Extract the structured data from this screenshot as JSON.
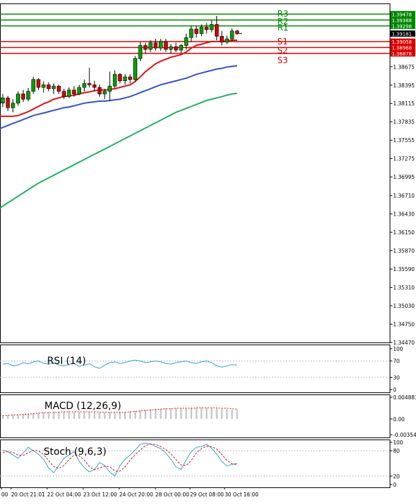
{
  "colors": {
    "background": "#ffffff",
    "frame": "#000000",
    "bull_candle": "#00a000",
    "bear_candle": "#d40000",
    "ma_fast": "#e01010",
    "ma_mid": "#3050d0",
    "ma_slow": "#20b060",
    "resistance": "#008800",
    "support": "#dd0000",
    "current_price_bg": "#000000",
    "oscillator": "#30a0e0",
    "signal": "#e01010",
    "rsi_line": "#2f9fe0"
  },
  "chart_data": [
    {
      "type": "candlestick",
      "panel": "main",
      "ylim": [
        1.3447,
        1.3964
      ],
      "price_ticks": [
        "1.38675",
        "1.38395",
        "1.38115",
        "1.37835",
        "1.37555",
        "1.37275",
        "1.36995",
        "1.36710",
        "1.36430",
        "1.36150",
        "1.35870",
        "1.35590",
        "1.35310",
        "1.35030",
        "1.34750",
        "1.34470"
      ],
      "time_labels": [
        "00",
        "20 Oct 21:01",
        "22 Oct 04:00",
        "23 Oct 12:00",
        "24 Oct 20:00",
        "28 Oct 00:00",
        "29 Oct 08:00",
        "30 Oct 16:00"
      ],
      "current_price": "1.39181",
      "levels": [
        {
          "name": "R3",
          "value": 1.39478,
          "label": "1.39478",
          "kind": "resistance"
        },
        {
          "name": "R2",
          "value": 1.39388,
          "label": "1.39388",
          "kind": "resistance"
        },
        {
          "name": "R1",
          "value": 1.39298,
          "label": "1.39298",
          "kind": "resistance"
        },
        {
          "name": "S1",
          "value": 1.39058,
          "label": "1.39058",
          "kind": "support"
        },
        {
          "name": "S2",
          "value": 1.38968,
          "label": "1.38968",
          "kind": "support"
        },
        {
          "name": "S3",
          "value": 1.38878,
          "label": "1.38878",
          "kind": "support"
        }
      ],
      "candles": [
        [
          1.3812,
          1.3826,
          1.3806,
          1.382
        ],
        [
          1.382,
          1.3823,
          1.38,
          1.3805
        ],
        [
          1.3805,
          1.3818,
          1.3798,
          1.3812
        ],
        [
          1.3812,
          1.383,
          1.3808,
          1.3826
        ],
        [
          1.3826,
          1.3832,
          1.3814,
          1.3818
        ],
        [
          1.3818,
          1.3835,
          1.3815,
          1.383
        ],
        [
          1.383,
          1.3852,
          1.3826,
          1.3848
        ],
        [
          1.3848,
          1.385,
          1.3832,
          1.3836
        ],
        [
          1.3836,
          1.3845,
          1.3828,
          1.384
        ],
        [
          1.384,
          1.3844,
          1.383,
          1.3834
        ],
        [
          1.3834,
          1.3842,
          1.3826,
          1.3838
        ],
        [
          1.3838,
          1.384,
          1.3826,
          1.383
        ],
        [
          1.383,
          1.3834,
          1.3818,
          1.3822
        ],
        [
          1.3822,
          1.3836,
          1.382,
          1.3832
        ],
        [
          1.3832,
          1.3838,
          1.3822,
          1.3826
        ],
        [
          1.3826,
          1.384,
          1.3824,
          1.3836
        ],
        [
          1.3836,
          1.3848,
          1.383,
          1.3842
        ],
        [
          1.3842,
          1.3866,
          1.3836,
          1.384
        ],
        [
          1.384,
          1.3846,
          1.383,
          1.3836
        ],
        [
          1.3836,
          1.384,
          1.3822,
          1.3826
        ],
        [
          1.3826,
          1.3834,
          1.3818,
          1.383
        ],
        [
          1.383,
          1.386,
          1.3815,
          1.3838
        ],
        [
          1.3838,
          1.3862,
          1.3835,
          1.3856
        ],
        [
          1.3856,
          1.3858,
          1.3842,
          1.3846
        ],
        [
          1.3846,
          1.3856,
          1.384,
          1.3852
        ],
        [
          1.3852,
          1.3856,
          1.3842,
          1.3848
        ],
        [
          1.3848,
          1.3884,
          1.3845,
          1.388
        ],
        [
          1.388,
          1.3905,
          1.3876,
          1.39
        ],
        [
          1.39,
          1.3904,
          1.3888,
          1.3894
        ],
        [
          1.3894,
          1.3908,
          1.389,
          1.3904
        ],
        [
          1.3904,
          1.391,
          1.3892,
          1.3896
        ],
        [
          1.3896,
          1.391,
          1.3892,
          1.3906
        ],
        [
          1.3906,
          1.391,
          1.389,
          1.3894
        ],
        [
          1.3894,
          1.3902,
          1.3888,
          1.3898
        ],
        [
          1.3898,
          1.3904,
          1.389,
          1.3893
        ],
        [
          1.3893,
          1.3902,
          1.3888,
          1.39
        ],
        [
          1.39,
          1.3918,
          1.3894,
          1.3912
        ],
        [
          1.3912,
          1.393,
          1.3905,
          1.3925
        ],
        [
          1.3925,
          1.393,
          1.3912,
          1.3918
        ],
        [
          1.3918,
          1.3932,
          1.3914,
          1.3928
        ],
        [
          1.3928,
          1.3934,
          1.3918,
          1.3924
        ],
        [
          1.3924,
          1.3938,
          1.392,
          1.3932
        ],
        [
          1.3932,
          1.3945,
          1.3908,
          1.3914
        ],
        [
          1.3914,
          1.3922,
          1.39,
          1.3905
        ],
        [
          1.3905,
          1.3915,
          1.3902,
          1.391
        ],
        [
          1.391,
          1.3926,
          1.3906,
          1.3922
        ],
        [
          1.3922,
          1.3924,
          1.3916,
          1.3918
        ]
      ],
      "ma_fast": [
        1.3792,
        1.3792,
        1.3792,
        1.3793,
        1.3796,
        1.3799,
        1.3803,
        1.3807,
        1.3811,
        1.3814,
        1.3818,
        1.382,
        1.3822,
        1.3823,
        1.3824,
        1.3826,
        1.3828,
        1.3829,
        1.3831,
        1.3832,
        1.3832,
        1.3833,
        1.3834,
        1.3836,
        1.3838,
        1.384,
        1.3845,
        1.3852,
        1.386,
        1.3866,
        1.3872,
        1.3876,
        1.3879,
        1.3882,
        1.3884,
        1.3886,
        1.389,
        1.3896,
        1.39,
        1.3902,
        1.3904,
        1.3906,
        1.3906,
        1.3906,
        1.3907,
        1.3908,
        1.3908
      ],
      "ma_mid": [
        1.3775,
        1.3778,
        1.3781,
        1.3784,
        1.3787,
        1.379,
        1.3793,
        1.3795,
        1.3797,
        1.3799,
        1.3801,
        1.3803,
        1.3805,
        1.3806,
        1.3808,
        1.381,
        1.3812,
        1.3813,
        1.3814,
        1.3815,
        1.3815,
        1.3816,
        1.3817,
        1.3818,
        1.382,
        1.3822,
        1.3825,
        1.3828,
        1.3831,
        1.3834,
        1.3837,
        1.384,
        1.3842,
        1.3844,
        1.3846,
        1.3848,
        1.385,
        1.3853,
        1.3856,
        1.3858,
        1.386,
        1.3862,
        1.3864,
        1.3865,
        1.3867,
        1.3868,
        1.3869
      ],
      "ma_slow": [
        1.3655,
        1.366,
        1.3665,
        1.367,
        1.3675,
        1.368,
        1.3685,
        1.369,
        1.3694,
        1.3698,
        1.3702,
        1.3706,
        1.371,
        1.3714,
        1.3718,
        1.3722,
        1.3726,
        1.373,
        1.3734,
        1.3738,
        1.3742,
        1.3746,
        1.375,
        1.3754,
        1.3758,
        1.3762,
        1.3766,
        1.377,
        1.3774,
        1.3778,
        1.3782,
        1.3786,
        1.379,
        1.3794,
        1.3798,
        1.3801,
        1.3804,
        1.3807,
        1.381,
        1.3813,
        1.3816,
        1.3818,
        1.382,
        1.3822,
        1.3824,
        1.3826,
        1.3827
      ]
    },
    {
      "type": "line",
      "panel": "rsi",
      "title": "RSI (14)",
      "ylim": [
        0,
        100
      ],
      "ticks": [
        "100",
        "70",
        "30",
        "0"
      ],
      "tick_values": [
        100,
        70,
        30,
        0
      ],
      "values": [
        62,
        64,
        58,
        60,
        66,
        63,
        68,
        70,
        64,
        62,
        66,
        60,
        58,
        62,
        64,
        57,
        60,
        63,
        56,
        52,
        60,
        66,
        68,
        64,
        66,
        70,
        72,
        70,
        66,
        68,
        70,
        68,
        64,
        62,
        66,
        68,
        70,
        66,
        64,
        68,
        70,
        66,
        58,
        55,
        58,
        61,
        60
      ]
    },
    {
      "type": "bar",
      "panel": "macd",
      "title": "MACD (12,26,9)",
      "ylim": [
        -0.003544,
        0.004883
      ],
      "ticks": [
        "0.004883",
        "0.00",
        "-0.003544"
      ],
      "tick_values": [
        0.004883,
        0.0,
        -0.003544
      ],
      "values": [
        0.0008,
        0.0009,
        0.0009,
        0.001,
        0.0011,
        0.0012,
        0.0013,
        0.0014,
        0.0015,
        0.0015,
        0.0016,
        0.0016,
        0.0016,
        0.0016,
        0.0016,
        0.0016,
        0.0016,
        0.0016,
        0.0015,
        0.0015,
        0.0015,
        0.0015,
        0.0015,
        0.0016,
        0.0016,
        0.0017,
        0.0018,
        0.0019,
        0.0021,
        0.0022,
        0.0023,
        0.0023,
        0.0024,
        0.0024,
        0.0024,
        0.0024,
        0.0024,
        0.0025,
        0.0025,
        0.0025,
        0.0025,
        0.0025,
        0.0024,
        0.0023,
        0.0022,
        0.0021,
        0.0021
      ],
      "signal": [
        0.0007,
        0.0008,
        0.0009,
        0.0009,
        0.001,
        0.0011,
        0.0012,
        0.0013,
        0.0014,
        0.0014,
        0.0015,
        0.0015,
        0.0016,
        0.0016,
        0.0016,
        0.0016,
        0.0016,
        0.0016,
        0.0016,
        0.0015,
        0.0015,
        0.0015,
        0.0015,
        0.0015,
        0.0015,
        0.0016,
        0.0017,
        0.0018,
        0.0019,
        0.002,
        0.0021,
        0.0022,
        0.0023,
        0.0023,
        0.0024,
        0.0024,
        0.0024,
        0.0024,
        0.0025,
        0.0025,
        0.0025,
        0.0025,
        0.0025,
        0.0024,
        0.0024,
        0.0023,
        0.0022
      ]
    },
    {
      "type": "line",
      "panel": "stoch",
      "title": "Stoch (9,6,3)",
      "ylim": [
        0,
        100
      ],
      "ticks": [
        "100",
        "80",
        "20",
        "0"
      ],
      "tick_values": [
        100,
        80,
        20,
        0
      ],
      "k_values": [
        82,
        78,
        70,
        62,
        75,
        88,
        80,
        72,
        60,
        40,
        28,
        45,
        62,
        70,
        78,
        55,
        40,
        30,
        36,
        52,
        45,
        30,
        20,
        45,
        60,
        70,
        82,
        95,
        98,
        96,
        90,
        85,
        75,
        60,
        42,
        36,
        58,
        78,
        88,
        90,
        95,
        86,
        72,
        55,
        44,
        48,
        50
      ],
      "d_values": [
        76,
        78,
        76,
        70,
        69,
        75,
        81,
        80,
        71,
        57,
        43,
        38,
        45,
        59,
        70,
        68,
        58,
        42,
        35,
        39,
        44,
        42,
        32,
        32,
        42,
        58,
        71,
        82,
        92,
        96,
        95,
        90,
        83,
        73,
        59,
        46,
        45,
        57,
        75,
        85,
        91,
        90,
        84,
        71,
        57,
        49,
        47
      ]
    }
  ]
}
